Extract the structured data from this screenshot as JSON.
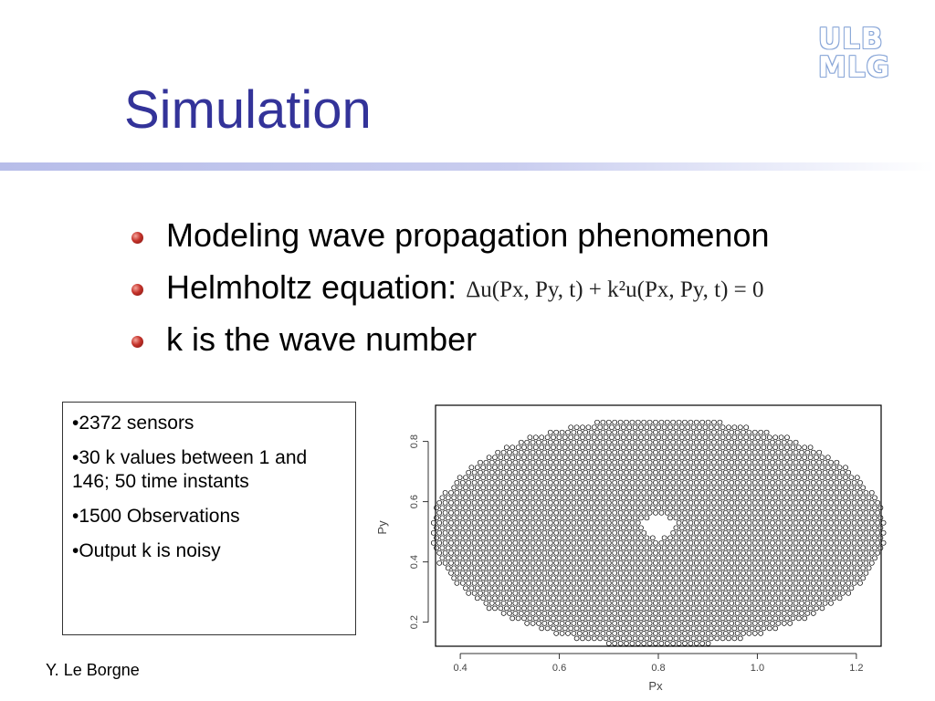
{
  "slide": {
    "title": "Simulation",
    "logo": {
      "line1": "ULB",
      "line2": "MLG"
    },
    "bullets": [
      {
        "text": "Modeling wave propagation phenomenon"
      },
      {
        "text": "Helmholtz equation:"
      },
      {
        "text": "k is the wave number"
      }
    ],
    "equation": "Δu(Px, Py, t) + k²u(Px, Py, t) = 0",
    "info_box": [
      "•2372 sensors",
      "•30 k values between 1 and 146; 50 time instants",
      "•1500 Observations",
      "•Output k is noisy"
    ],
    "footer": "Y. Le Borgne"
  },
  "chart_data": {
    "type": "scatter",
    "xlabel": "Px",
    "ylabel": "Py",
    "xlim": [
      0.35,
      1.25
    ],
    "ylim": [
      0.12,
      0.92
    ],
    "x_ticks": [
      "0.4",
      "0.6",
      "0.8",
      "1.0",
      "1.2"
    ],
    "y_ticks": [
      "0.2",
      "0.4",
      "0.6",
      "0.8"
    ],
    "marker": "open-circle",
    "sensor_count": 2372,
    "region": {
      "shape": "ellipse",
      "center": [
        0.8,
        0.5
      ],
      "radius_x": 0.46,
      "radius_y": 0.38
    },
    "excluded_center": {
      "shape": "diamond",
      "center": [
        0.8,
        0.52
      ],
      "half_width": 0.04,
      "half_height": 0.045
    }
  }
}
